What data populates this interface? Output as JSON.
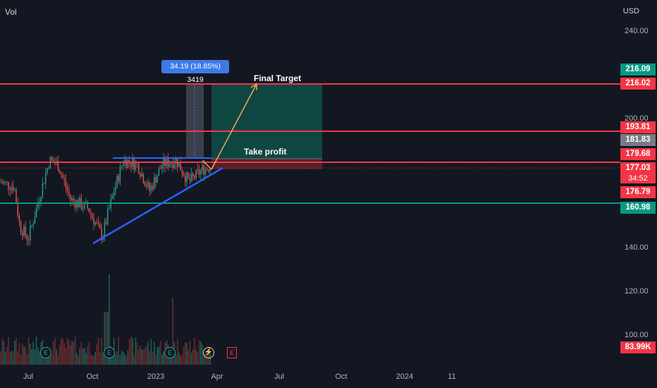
{
  "header": {
    "vol_label": "Vol",
    "currency": "USD"
  },
  "price_axis": {
    "ticks": [
      "240.00",
      "200.00",
      "140.00",
      "120.00",
      "100.00"
    ]
  },
  "time_axis": {
    "ticks": [
      "Jul",
      "Oct",
      "2023",
      "Apr",
      "Jul",
      "Oct",
      "2024",
      "11"
    ]
  },
  "price_tags": [
    {
      "text": "216.09",
      "color": "#089981"
    },
    {
      "text": "216.02",
      "color": "#f23645"
    },
    {
      "text": "193.81",
      "color": "#f23645"
    },
    {
      "text": "181.83",
      "color": "#787b86"
    },
    {
      "text": "179.68",
      "color": "#f23645"
    },
    {
      "text": "177.03",
      "color": "#f23645"
    },
    {
      "text": "176.79",
      "color": "#f23645"
    },
    {
      "text": "160.98",
      "color": "#089981"
    },
    {
      "text": "83.99K",
      "color": "#f23645"
    }
  ],
  "countdown": "34:52",
  "measure_label": "34.19 (18.85%) 3419",
  "annotations": {
    "final_target": "Final Target",
    "take_profit": "Take profit"
  },
  "events": {
    "earnings": "E",
    "earnings_upcoming": "E",
    "dividend": "⚡"
  },
  "colors": {
    "background": "#131722",
    "up": "#26a69a",
    "down": "#ef5350",
    "red_line": "#f23645",
    "green_line": "#089981",
    "trend_line": "#2962ff",
    "arrow": "#f7a35c"
  }
}
